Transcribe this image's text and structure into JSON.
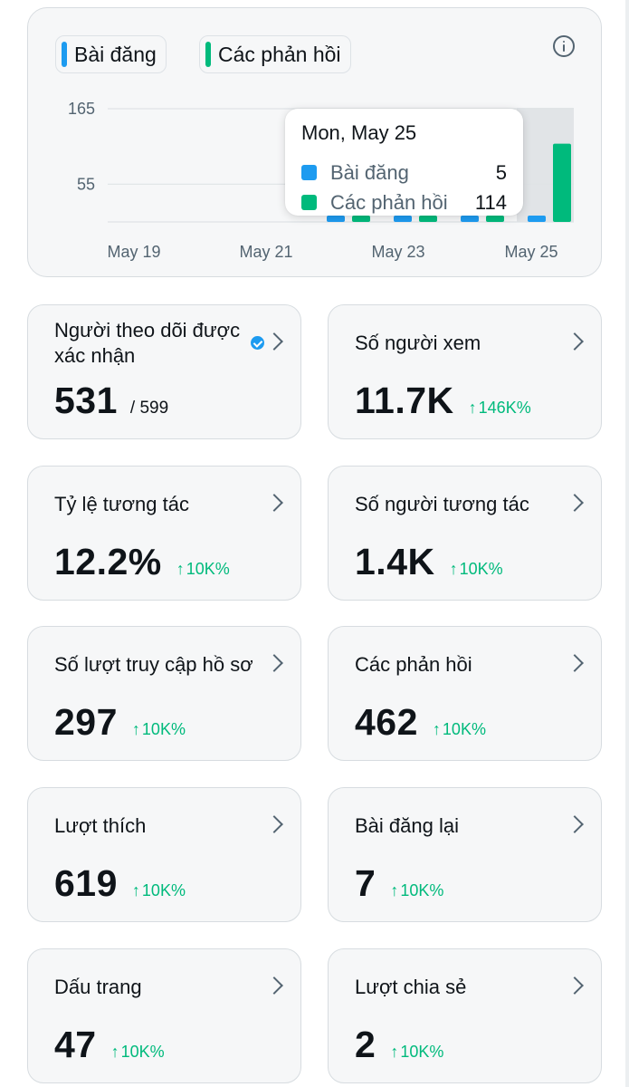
{
  "chart": {
    "legend": [
      {
        "label": "Bài đăng",
        "color": "#1d9bf0"
      },
      {
        "label": "Các phản hồi",
        "color": "#00ba7c"
      }
    ],
    "info_icon": "info-icon",
    "tooltip": {
      "date": "Mon, May 25",
      "rows": [
        {
          "label": "Bài đăng",
          "value": "5",
          "color": "#1d9bf0"
        },
        {
          "label": "Các phản hồi",
          "value": "114",
          "color": "#00ba7c"
        }
      ]
    }
  },
  "chart_data": {
    "type": "bar",
    "y_ticks": [
      "165",
      "55"
    ],
    "x_ticks": [
      "May 19",
      "May 21",
      "May 23",
      "May 25"
    ],
    "ylim": [
      0,
      165
    ],
    "highlighted_category": "May 25",
    "series": [
      {
        "name": "Bài đăng",
        "color": "#1d9bf0",
        "values": [
          {
            "date": "May 22",
            "value": 5
          },
          {
            "date": "May 23",
            "value": 5
          },
          {
            "date": "May 24",
            "value": 5
          },
          {
            "date": "May 25",
            "value": 5
          }
        ]
      },
      {
        "name": "Các phản hồi",
        "color": "#00ba7c",
        "values": [
          {
            "date": "May 22",
            "value": 12
          },
          {
            "date": "May 23",
            "value": 12
          },
          {
            "date": "May 24",
            "value": 12
          },
          {
            "date": "May 25",
            "value": 114
          }
        ]
      }
    ]
  },
  "cards": [
    {
      "title": "Người theo dõi được xác nhận",
      "value": "531",
      "sub": "/ 599",
      "verified": true
    },
    {
      "title": "Số người xem",
      "value": "11.7K",
      "change": "146K%"
    },
    {
      "title": "Tỷ lệ tương tác",
      "value": "12.2%",
      "change": "10K%"
    },
    {
      "title": "Số người tương tác",
      "value": "1.4K",
      "change": "10K%"
    },
    {
      "title": "Số lượt truy cập hồ sơ",
      "value": "297",
      "change": "10K%"
    },
    {
      "title": "Các phản hồi",
      "value": "462",
      "change": "10K%"
    },
    {
      "title": "Lượt thích",
      "value": "619",
      "change": "10K%"
    },
    {
      "title": "Bài đăng lại",
      "value": "7",
      "change": "10K%"
    },
    {
      "title": "Dấu trang",
      "value": "47",
      "change": "10K%"
    },
    {
      "title": "Lượt chia sẻ",
      "value": "2",
      "change": "10K%"
    }
  ],
  "icons": {
    "chevron": "chevron-right-icon",
    "change_arrow": "↑",
    "verified": "verified-badge-icon"
  }
}
